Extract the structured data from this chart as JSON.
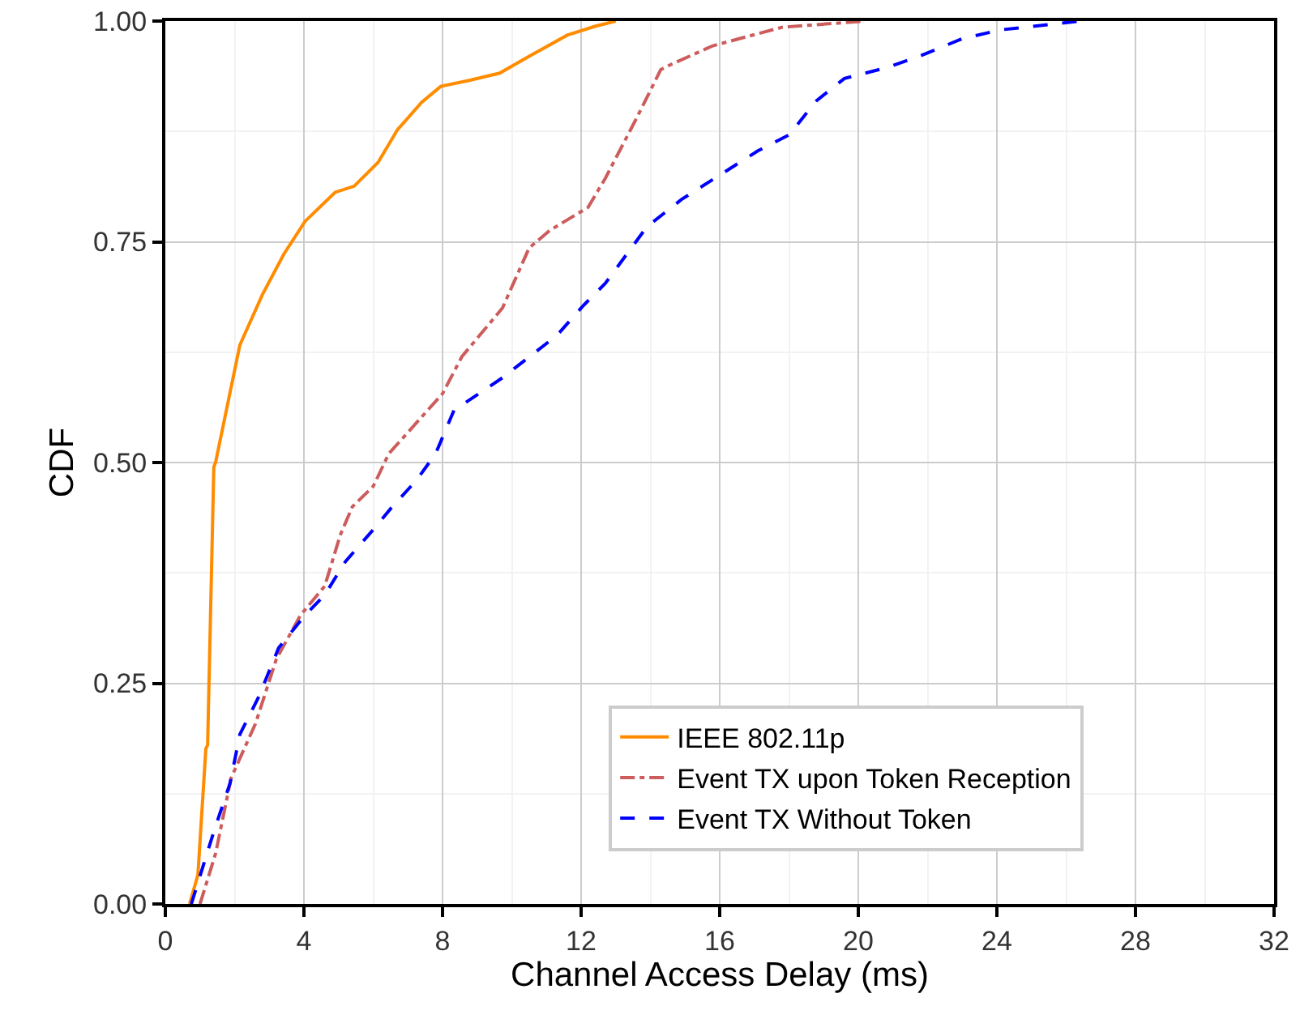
{
  "chart_data": {
    "type": "line",
    "xlabel": "Channel Access Delay (ms)",
    "ylabel": "CDF",
    "xlim": [
      0,
      32
    ],
    "xticks": [
      0,
      4,
      8,
      12,
      16,
      20,
      24,
      28,
      32
    ],
    "ylim": [
      0,
      1
    ],
    "yticks": [
      {
        "value": 0,
        "label": "0.00"
      },
      {
        "value": 0.25,
        "label": "0.25"
      },
      {
        "value": 0.5,
        "label": "0.50"
      },
      {
        "value": 0.75,
        "label": "0.75"
      },
      {
        "value": 1,
        "label": "1.00"
      }
    ],
    "grid": true,
    "legend": "bottom right",
    "marker": "none",
    "series": [
      {
        "name": "IEEE 802.11p",
        "color": "#ff8c00",
        "line_style": "solid",
        "x": [
          0.7,
          0.94,
          1.17,
          1.22,
          1.4,
          1.45,
          2.15,
          2.8,
          3.42,
          4.03,
          4.9,
          5.45,
          6.14,
          6.7,
          7.4,
          7.95,
          8.8,
          9.65,
          10.5,
          11.6,
          12.4,
          13.0
        ],
        "values": [
          0,
          0.033,
          0.176,
          0.18,
          0.495,
          0.5,
          0.633,
          0.69,
          0.736,
          0.773,
          0.806,
          0.813,
          0.84,
          0.877,
          0.908,
          0.926,
          0.933,
          0.941,
          0.96,
          0.984,
          0.994,
          1.0
        ]
      },
      {
        "name": "Event TX upon Token Reception",
        "color": "#cd5c5c",
        "line_style": "dashdot",
        "x": [
          1.0,
          1.45,
          1.9,
          2.6,
          3.2,
          3.9,
          4.6,
          5.05,
          5.4,
          6.0,
          6.45,
          8.0,
          8.56,
          9.73,
          10.5,
          11.1,
          12.2,
          12.7,
          13.6,
          14.3,
          14.55,
          15.8,
          17.8,
          20.2
        ],
        "values": [
          0,
          0.057,
          0.143,
          0.204,
          0.277,
          0.327,
          0.36,
          0.418,
          0.45,
          0.473,
          0.51,
          0.578,
          0.62,
          0.675,
          0.743,
          0.763,
          0.789,
          0.822,
          0.89,
          0.945,
          0.95,
          0.972,
          0.993,
          1.0
        ]
      },
      {
        "name": "Event TX Without Token",
        "color": "#0000ff",
        "line_style": "dashed",
        "x": [
          0.75,
          1.4,
          1.87,
          2.15,
          2.7,
          3.27,
          4.03,
          4.6,
          5.2,
          6.0,
          6.55,
          7.25,
          7.8,
          8.33,
          9.73,
          11.3,
          12.07,
          12.7,
          13.9,
          14.9,
          16.1,
          17.1,
          18.0,
          18.8,
          19.6,
          20.8,
          21.75,
          23.0,
          24.1,
          26.4
        ],
        "values": [
          0,
          0.082,
          0.137,
          0.192,
          0.235,
          0.29,
          0.327,
          0.35,
          0.388,
          0.424,
          0.45,
          0.48,
          0.51,
          0.559,
          0.596,
          0.644,
          0.678,
          0.703,
          0.767,
          0.798,
          0.828,
          0.853,
          0.871,
          0.91,
          0.935,
          0.947,
          0.96,
          0.98,
          0.99,
          1.0
        ]
      }
    ]
  }
}
